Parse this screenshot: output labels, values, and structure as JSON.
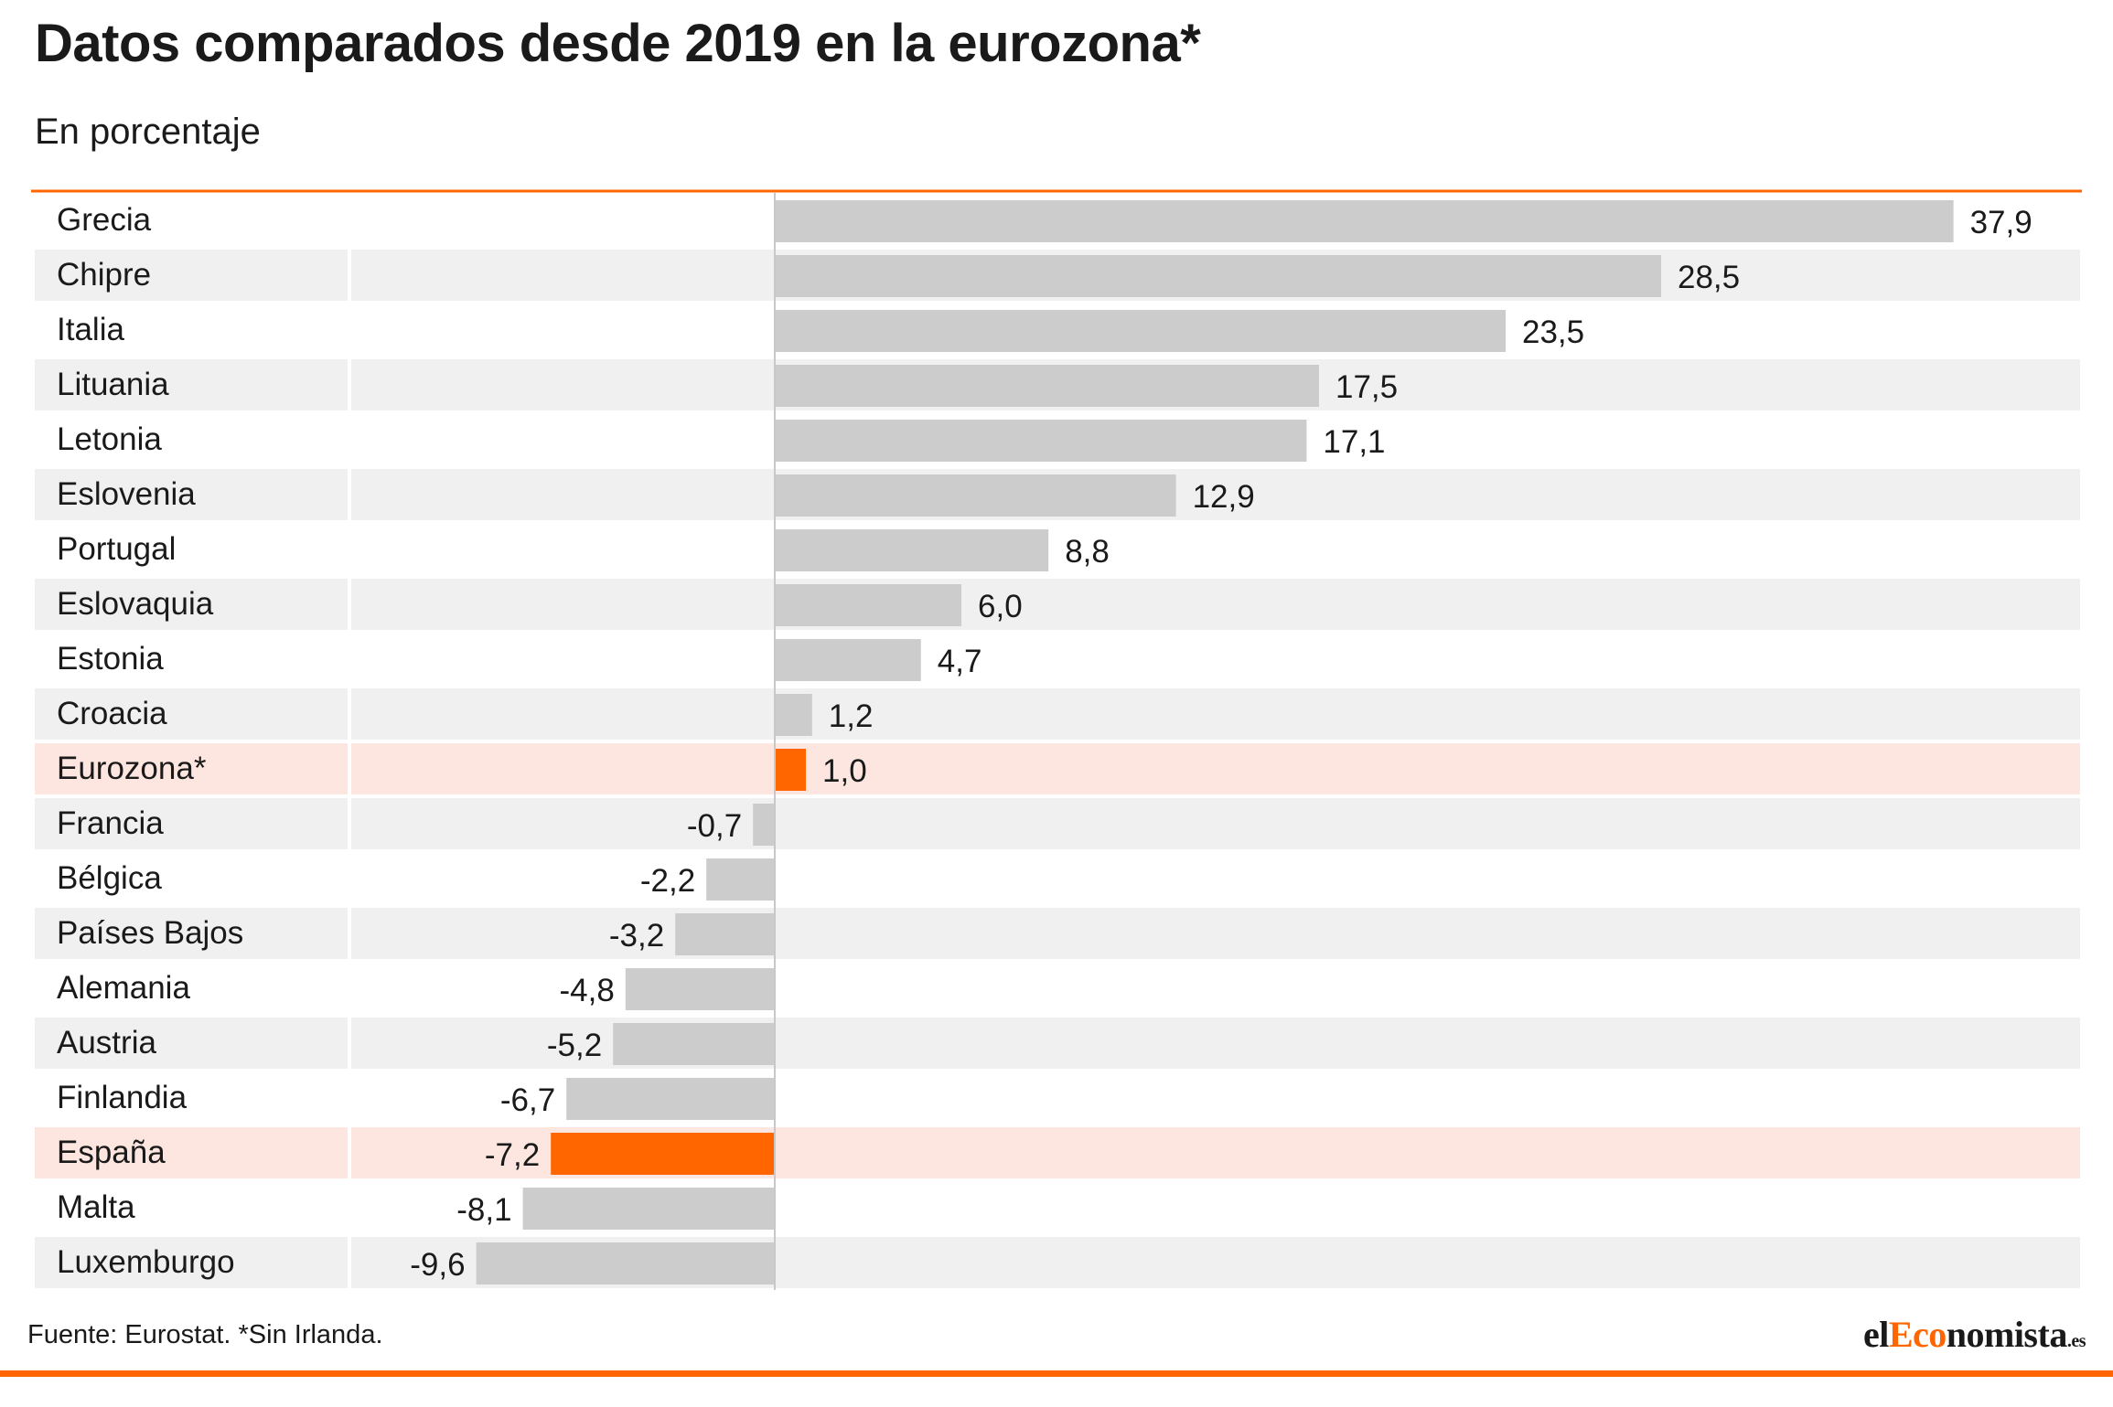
{
  "header": {
    "title": "Datos comparados desde 2019 en la eurozona*",
    "subtitle": "En porcentaje"
  },
  "footer": {
    "source": "Fuente: Eurostat. *Sin Irlanda.",
    "logo": {
      "part1": "el",
      "part2": "Eco",
      "part3": "nomista",
      "suffix": ".es"
    }
  },
  "colors": {
    "accent": "#ff6600",
    "bar": "#cccccc",
    "row_alt": "#f0f0f0",
    "row_highlight": "#fde6df",
    "axis": "#c8c8c8"
  },
  "chart_data": {
    "type": "bar",
    "orientation": "horizontal",
    "title": "Datos comparados desde 2019 en la eurozona*",
    "subtitle": "En porcentaje",
    "categories": [
      "Grecia",
      "Chipre",
      "Italia",
      "Lituania",
      "Letonia",
      "Eslovenia",
      "Portugal",
      "Eslovaquia",
      "Estonia",
      "Croacia",
      "Eurozona*",
      "Francia",
      "Bélgica",
      "Países Bajos",
      "Alemania",
      "Austria",
      "Finlandia",
      "España",
      "Malta",
      "Luxemburgo"
    ],
    "values": [
      37.9,
      28.5,
      23.5,
      17.5,
      17.1,
      12.9,
      8.8,
      6.0,
      4.7,
      1.2,
      1.0,
      -0.7,
      -2.2,
      -3.2,
      -4.8,
      -5.2,
      -6.7,
      -7.2,
      -8.1,
      -9.6
    ],
    "value_labels": [
      "37,9",
      "28,5",
      "23,5",
      "17,5",
      "17,1",
      "12,9",
      "8,8",
      "6,0",
      "4,7",
      "1,2",
      "1,0",
      "-0,7",
      "-2,2",
      "-3,2",
      "-4,8",
      "-5,2",
      "-6,7",
      "-7,2",
      "-8,1",
      "-9,6"
    ],
    "highlighted": [
      "Eurozona*",
      "España"
    ],
    "xlim": [
      -9.6,
      37.9
    ],
    "grid": false,
    "legend": "none"
  }
}
